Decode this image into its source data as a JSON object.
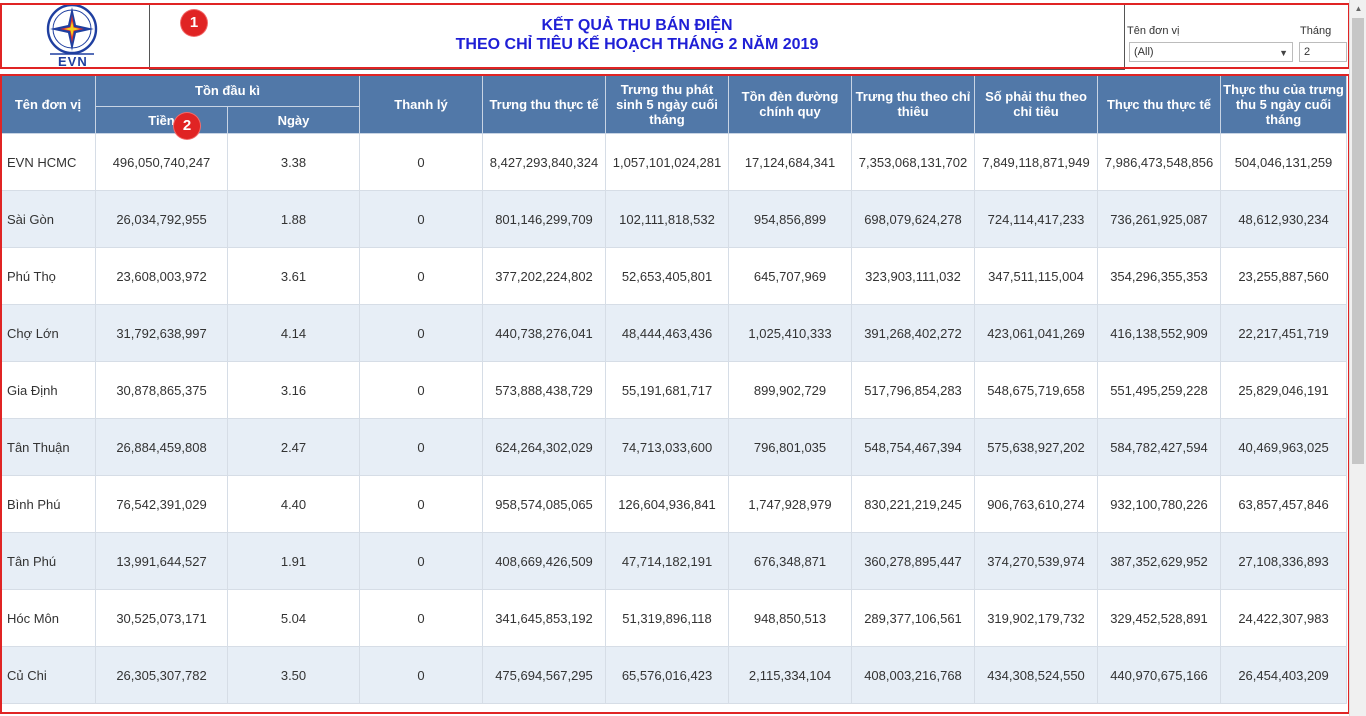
{
  "header": {
    "logo_text": "EVN",
    "title_line1": "KẾT QUẢ THU BÁN ĐIỆN",
    "title_line2": "THEO CHỈ TIÊU KẾ HOẠCH THÁNG 2 NĂM 2019"
  },
  "filters": {
    "unit_label": "Tên đơn vị",
    "unit_value": "(All)",
    "month_label": "Tháng",
    "month_value": "2"
  },
  "annotations": [
    "1",
    "2"
  ],
  "table": {
    "headers": {
      "unit": "Tên đơn vị",
      "opening_group": "Tồn đầu kì",
      "opening_money": "Tiền",
      "opening_days": "Ngày",
      "liquidation": "Thanh lý",
      "actual_collection": "Trưng thu thực tế",
      "last5_generated": "Trưng thu phát sinh 5 ngày cuối tháng",
      "street_light": "Tồn đèn đường chính quy",
      "target_collection": "Trưng thu theo chỉ thiêu",
      "due_target": "Số phải thu theo chỉ tiêu",
      "actual_received": "Thực thu thực tế",
      "received_last5": "Thực thu của trưng thu 5 ngày cuối tháng"
    },
    "rows": [
      {
        "unit": "EVN HCMC",
        "money": "496,050,740,247",
        "days": "3.38",
        "liq": "0",
        "actual": "8,427,293,840,324",
        "last5": "1,057,101,024,281",
        "street": "17,124,684,341",
        "target": "7,353,068,131,702",
        "due": "7,849,118,871,949",
        "received": "7,986,473,548,856",
        "recv5": "504,046,131,259"
      },
      {
        "unit": "Sài Gòn",
        "money": "26,034,792,955",
        "days": "1.88",
        "liq": "0",
        "actual": "801,146,299,709",
        "last5": "102,111,818,532",
        "street": "954,856,899",
        "target": "698,079,624,278",
        "due": "724,114,417,233",
        "received": "736,261,925,087",
        "recv5": "48,612,930,234"
      },
      {
        "unit": "Phú Thọ",
        "money": "23,608,003,972",
        "days": "3.61",
        "liq": "0",
        "actual": "377,202,224,802",
        "last5": "52,653,405,801",
        "street": "645,707,969",
        "target": "323,903,111,032",
        "due": "347,511,115,004",
        "received": "354,296,355,353",
        "recv5": "23,255,887,560"
      },
      {
        "unit": "Chợ Lớn",
        "money": "31,792,638,997",
        "days": "4.14",
        "liq": "0",
        "actual": "440,738,276,041",
        "last5": "48,444,463,436",
        "street": "1,025,410,333",
        "target": "391,268,402,272",
        "due": "423,061,041,269",
        "received": "416,138,552,909",
        "recv5": "22,217,451,719"
      },
      {
        "unit": "Gia Định",
        "money": "30,878,865,375",
        "days": "3.16",
        "liq": "0",
        "actual": "573,888,438,729",
        "last5": "55,191,681,717",
        "street": "899,902,729",
        "target": "517,796,854,283",
        "due": "548,675,719,658",
        "received": "551,495,259,228",
        "recv5": "25,829,046,191"
      },
      {
        "unit": "Tân Thuận",
        "money": "26,884,459,808",
        "days": "2.47",
        "liq": "0",
        "actual": "624,264,302,029",
        "last5": "74,713,033,600",
        "street": "796,801,035",
        "target": "548,754,467,394",
        "due": "575,638,927,202",
        "received": "584,782,427,594",
        "recv5": "40,469,963,025"
      },
      {
        "unit": "Bình Phú",
        "money": "76,542,391,029",
        "days": "4.40",
        "liq": "0",
        "actual": "958,574,085,065",
        "last5": "126,604,936,841",
        "street": "1,747,928,979",
        "target": "830,221,219,245",
        "due": "906,763,610,274",
        "received": "932,100,780,226",
        "recv5": "63,857,457,846"
      },
      {
        "unit": "Tân Phú",
        "money": "13,991,644,527",
        "days": "1.91",
        "liq": "0",
        "actual": "408,669,426,509",
        "last5": "47,714,182,191",
        "street": "676,348,871",
        "target": "360,278,895,447",
        "due": "374,270,539,974",
        "received": "387,352,629,952",
        "recv5": "27,108,336,893"
      },
      {
        "unit": "Hóc Môn",
        "money": "30,525,073,171",
        "days": "5.04",
        "liq": "0",
        "actual": "341,645,853,192",
        "last5": "51,319,896,118",
        "street": "948,850,513",
        "target": "289,377,106,561",
        "due": "319,902,179,732",
        "received": "329,452,528,891",
        "recv5": "24,422,307,983"
      },
      {
        "unit": "Củ Chi",
        "money": "26,305,307,782",
        "days": "3.50",
        "liq": "0",
        "actual": "475,694,567,295",
        "last5": "65,576,016,423",
        "street": "2,115,334,104",
        "target": "408,003,216,768",
        "due": "434,308,524,550",
        "received": "440,970,675,166",
        "recv5": "26,454,403,209"
      }
    ]
  },
  "colors": {
    "header_bg": "#5178a8",
    "row_alt": "#e7eef6",
    "title_text": "#1f1fd6",
    "annotation": "#e02424"
  }
}
